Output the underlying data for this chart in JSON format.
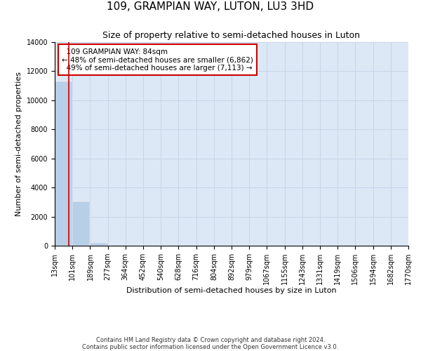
{
  "title": "109, GRAMPIAN WAY, LUTON, LU3 3HD",
  "subtitle": "Size of property relative to semi-detached houses in Luton",
  "xlabel": "Distribution of semi-detached houses by size in Luton",
  "ylabel": "Number of semi-detached properties",
  "property_size": 84,
  "property_label": "109 GRAMPIAN WAY: 84sqm",
  "pct_smaller": 48,
  "n_smaller": 6862,
  "pct_larger": 49,
  "n_larger": 7113,
  "bin_edges": [
    13,
    101,
    189,
    277,
    364,
    452,
    540,
    628,
    716,
    804,
    892,
    979,
    1067,
    1155,
    1243,
    1331,
    1419,
    1506,
    1594,
    1682,
    1770
  ],
  "bin_counts": [
    11300,
    3050,
    200,
    50,
    20,
    10,
    5,
    5,
    3,
    3,
    2,
    2,
    2,
    1,
    1,
    1,
    1,
    0,
    0,
    0
  ],
  "bar_color": "#b8cfe8",
  "grid_color": "#c8d4e8",
  "bg_color": "#dce8f5",
  "annotation_box_color": "#cc0000",
  "vline_color": "#cc0000",
  "ylim": [
    0,
    14000
  ],
  "yticks": [
    0,
    2000,
    4000,
    6000,
    8000,
    10000,
    12000,
    14000
  ],
  "footer_line1": "Contains HM Land Registry data © Crown copyright and database right 2024.",
  "footer_line2": "Contains public sector information licensed under the Open Government Licence v3.0.",
  "title_fontsize": 11,
  "subtitle_fontsize": 9,
  "tick_fontsize": 7,
  "axis_label_fontsize": 8,
  "footer_fontsize": 6
}
